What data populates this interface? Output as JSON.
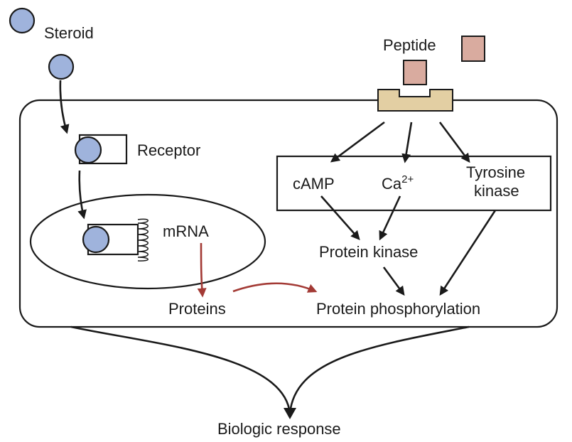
{
  "labels": {
    "steroid": "Steroid",
    "peptide": "Peptide",
    "receptor": "Receptor",
    "mrna": "mRNA",
    "camp": "cAMP",
    "calcium_base": "Ca",
    "calcium_sup": "2+",
    "tyrosine_line1": "Tyrosine",
    "tyrosine_line2": "kinase",
    "protein_kinase": "Protein kinase",
    "proteins": "Proteins",
    "protein_phosphorylation": "Protein phosphorylation",
    "biologic_response": "Biologic response"
  },
  "colors": {
    "steroid_fill": "#9fb3dc",
    "peptide_fill": "#d9ab9f",
    "membrane_receptor_fill": "#e3cfa3",
    "transcription_arrow": "#a33a35",
    "line": "#1a1a1a"
  }
}
